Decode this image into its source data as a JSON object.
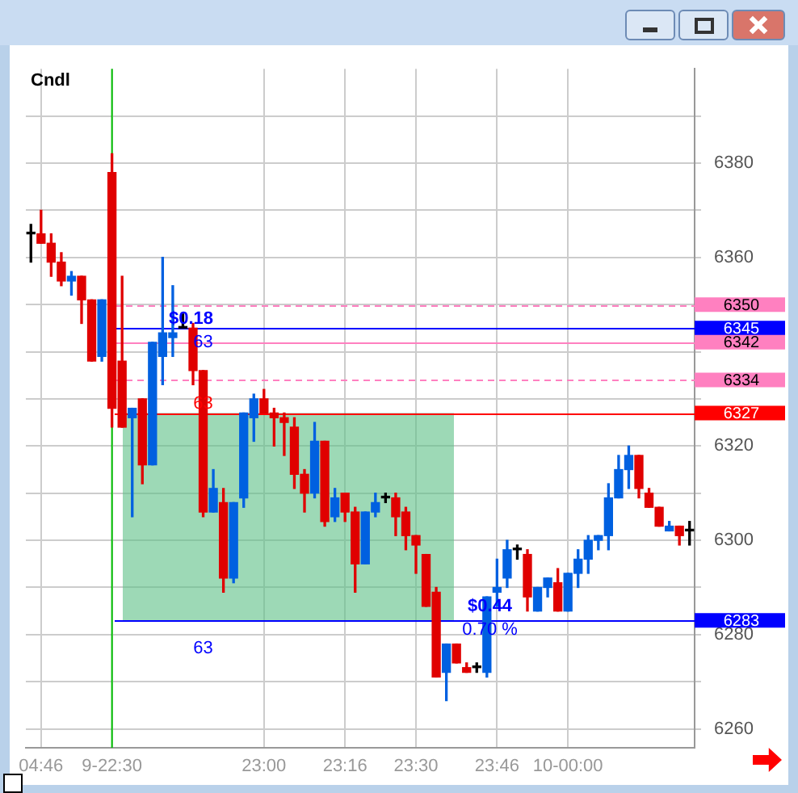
{
  "chart_data": {
    "type": "candlestick",
    "subtitle": "Cndl",
    "categories": [
      null,
      "04:46",
      null,
      null,
      null,
      null,
      null,
      null,
      "9-22:30",
      null,
      null,
      null,
      null,
      null,
      null,
      null,
      null,
      null,
      null,
      null,
      null,
      null,
      null,
      "23:00",
      null,
      null,
      null,
      null,
      null,
      null,
      null,
      "23:16",
      null,
      null,
      null,
      null,
      null,
      null,
      "23:30",
      null,
      null,
      null,
      null,
      null,
      null,
      null,
      "23:46",
      null,
      null,
      null,
      null,
      null,
      null,
      "10-00:00",
      null,
      null,
      null,
      null,
      null,
      null,
      null,
      null,
      null,
      null,
      null,
      null
    ],
    "ohlc": [
      [
        6365,
        6367,
        6359,
        6365
      ],
      [
        6365,
        6370,
        6363,
        6363
      ],
      [
        6363,
        6365,
        6356,
        6359
      ],
      [
        6359,
        6361,
        6354,
        6355
      ],
      [
        6355,
        6357,
        6352,
        6356
      ],
      [
        6356,
        6356,
        6346,
        6351
      ],
      [
        6351,
        6351,
        6338,
        6338
      ],
      [
        6339,
        6351,
        6338,
        6351
      ],
      [
        6378,
        6382,
        6324,
        6328
      ],
      [
        6338,
        6356,
        6324,
        6324
      ],
      [
        6326,
        6328,
        6305,
        6328
      ],
      [
        6330,
        6330,
        6312,
        6316
      ],
      [
        6316,
        6342,
        6316,
        6342
      ],
      [
        6339,
        6360,
        6333,
        6344
      ],
      [
        6343,
        6354,
        6339,
        6344
      ],
      [
        6345,
        6348,
        6345,
        6345
      ],
      [
        6345,
        6346,
        6333,
        6336
      ],
      [
        6336,
        6336,
        6305,
        6306
      ],
      [
        6306,
        6315,
        6306,
        6311
      ],
      [
        6308,
        6311,
        6289,
        6292
      ],
      [
        6292,
        6308,
        6291,
        6308
      ],
      [
        6309,
        6327,
        6307,
        6327
      ],
      [
        6326,
        6331,
        6321,
        6330
      ],
      [
        6330,
        6332,
        6327,
        6327
      ],
      [
        6327,
        6328,
        6320,
        6326
      ],
      [
        6326,
        6327,
        6318,
        6325
      ],
      [
        6324,
        6326,
        6311,
        6314
      ],
      [
        6314,
        6315,
        6306,
        6310
      ],
      [
        6310,
        6325,
        6309,
        6321
      ],
      [
        6321,
        6321,
        6303,
        6304
      ],
      [
        6305,
        6311,
        6304,
        6309
      ],
      [
        6310,
        6310,
        6304,
        6306
      ],
      [
        6306,
        6307,
        6289,
        6295
      ],
      [
        6295,
        6306,
        6295,
        6306
      ],
      [
        6306,
        6310,
        6305,
        6308
      ],
      [
        6309,
        6310,
        6308,
        6309
      ],
      [
        6309,
        6310,
        6301,
        6305
      ],
      [
        6306,
        6307,
        6298,
        6301
      ],
      [
        6301,
        6301,
        6293,
        6299
      ],
      [
        6297,
        6297,
        6286,
        6286
      ],
      [
        6289,
        6290,
        6271,
        6271
      ],
      [
        6272,
        6278,
        6266,
        6278
      ],
      [
        6278,
        6278,
        6274,
        6274
      ],
      [
        6273,
        6274,
        6272,
        6272
      ],
      [
        6273,
        6274,
        6272,
        6273
      ],
      [
        6272,
        6288,
        6271,
        6288
      ],
      [
        6289,
        6296,
        6286,
        6290
      ],
      [
        6292,
        6300,
        6290,
        6298
      ],
      [
        6298,
        6299,
        6296,
        6298
      ],
      [
        6297,
        6298,
        6285,
        6288
      ],
      [
        6285,
        6290,
        6285,
        6290
      ],
      [
        6290,
        6292,
        6288,
        6292
      ],
      [
        6291,
        6294,
        6285,
        6285
      ],
      [
        6285,
        6293,
        6285,
        6293
      ],
      [
        6293,
        6298,
        6290,
        6296
      ],
      [
        6296,
        6301,
        6293,
        6300
      ],
      [
        6300,
        6301,
        6298,
        6301
      ],
      [
        6301,
        6312,
        6298,
        6309
      ],
      [
        6309,
        6318,
        6309,
        6315
      ],
      [
        6315,
        6320,
        6311,
        6318
      ],
      [
        6318,
        6318,
        6309,
        6311
      ],
      [
        6310,
        6311,
        6307,
        6307
      ],
      [
        6307,
        6307,
        6303,
        6303
      ],
      [
        6302,
        6304,
        6302,
        6303
      ],
      [
        6303,
        6303,
        6299,
        6301
      ],
      [
        6302,
        6304,
        6299,
        6302
      ]
    ],
    "colors": [
      "#000000",
      "#e00000",
      "#e00000",
      "#e00000",
      "#0060e0",
      "#e00000",
      "#e00000",
      "#0060e0",
      "#e00000",
      "#e00000",
      "#0060e0",
      "#e00000",
      "#0060e0",
      "#0060e0",
      "#0060e0",
      "#000000",
      "#e00000",
      "#e00000",
      "#0060e0",
      "#e00000",
      "#0060e0",
      "#0060e0",
      "#0060e0",
      "#e00000",
      "#e00000",
      "#e00000",
      "#e00000",
      "#e00000",
      "#0060e0",
      "#e00000",
      "#0060e0",
      "#e00000",
      "#e00000",
      "#0060e0",
      "#0060e0",
      "#000000",
      "#e00000",
      "#e00000",
      "#e00000",
      "#e00000",
      "#e00000",
      "#0060e0",
      "#e00000",
      "#e00000",
      "#000000",
      "#0060e0",
      "#0060e0",
      "#0060e0",
      "#000000",
      "#e00000",
      "#0060e0",
      "#0060e0",
      "#e00000",
      "#0060e0",
      "#0060e0",
      "#0060e0",
      "#0060e0",
      "#0060e0",
      "#0060e0",
      "#0060e0",
      "#e00000",
      "#e00000",
      "#e00000",
      "#0060e0",
      "#e00000",
      "#000000"
    ],
    "ylim": [
      6256,
      6400
    ],
    "yticks": [
      6260,
      {
        "value": 6270,
        "label": null
      },
      6280,
      {
        "value": 6290,
        "label": null
      },
      6300,
      {
        "value": 6310,
        "label": null
      },
      6320,
      {
        "value": 6330,
        "label": null
      },
      {
        "value": 6340,
        "label": null
      },
      {
        "value": 6350,
        "label": null
      },
      6360,
      {
        "value": 6370,
        "label": null
      },
      6380,
      {
        "value": 6390,
        "label": null
      }
    ],
    "grid": true,
    "ref_lines": [
      {
        "axis": "y",
        "value": 6350,
        "label": "6350",
        "color": "#ff80c0",
        "line_style": "dashed"
      },
      {
        "axis": "y",
        "value": 6345,
        "label": "6345",
        "color": "#0000ff"
      },
      {
        "axis": "y",
        "value": 6342,
        "label": "6342",
        "color": "#ff80c0"
      },
      {
        "axis": "y",
        "value": 6334,
        "label": "6334",
        "color": "#ff80c0",
        "line_style": "dashed"
      },
      {
        "axis": "y",
        "value": 6327,
        "label": "6327",
        "color": "#ff0000"
      },
      {
        "axis": "y",
        "value": 6283,
        "label": "6283",
        "color": "#0000ff"
      },
      {
        "axis": "x",
        "value": "9-22:30",
        "color": "#00c000"
      }
    ],
    "bands": [
      {
        "axis": "y",
        "from": 6283,
        "to": 6327,
        "color": "#5cbf85"
      }
    ],
    "annotations": [
      {
        "text": "$0.18",
        "y": 6347
      },
      {
        "text": "63",
        "y": 6342
      },
      {
        "text": "63",
        "y": 6329
      },
      "63",
      {
        "text": "$0.44",
        "y": 6286
      },
      {
        "text": "0.70 %",
        "y": 6281
      }
    ]
  }
}
